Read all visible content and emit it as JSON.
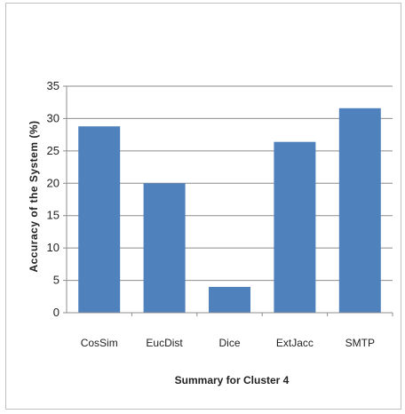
{
  "chart_data": {
    "type": "bar",
    "categories": [
      "CosSim",
      "EucDist",
      "Dice",
      "ExtJacc",
      "SMTP"
    ],
    "values": [
      28.8,
      20.0,
      4.0,
      26.4,
      31.6
    ],
    "xlabel": "Summary for Cluster 4",
    "ylabel": "Accuracy of the System (%)",
    "ylim": [
      0,
      35
    ],
    "yticks": [
      0,
      5,
      10,
      15,
      20,
      25,
      30,
      35
    ],
    "grid": true,
    "legend": "none",
    "bar_color": "#4f81bd",
    "grid_color": "#8c8c8c",
    "axis_color": "#8c8c8c"
  }
}
